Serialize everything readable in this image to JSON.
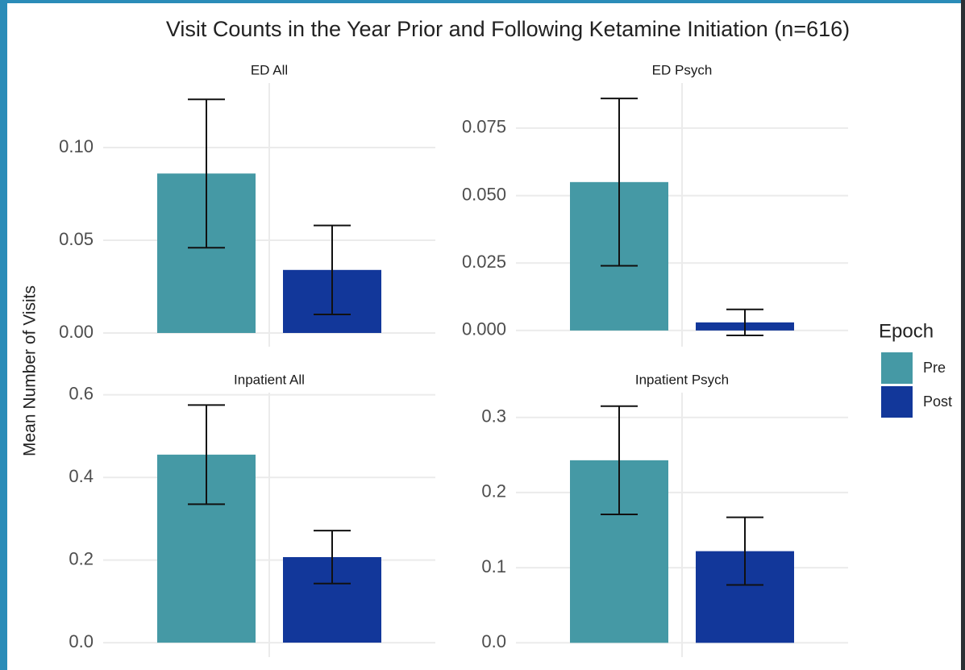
{
  "title": "Visit Counts in the Year Prior and Following Ketamine Initiation (n=616)",
  "y_label": "Mean Number of Visits",
  "legend_title": "Epoch",
  "chart_data": [
    {
      "type": "bar",
      "title": "ED All",
      "categories": [
        "Pre",
        "Post"
      ],
      "colors": [
        "#4599a5",
        "#12379a"
      ],
      "values": [
        0.086,
        0.034
      ],
      "errors": [
        0.04,
        0.024
      ],
      "ylim": [
        -0.0074,
        0.1348
      ],
      "yticks": [
        {
          "value": 0,
          "label": "0.00"
        },
        {
          "value": 0.05,
          "label": "0.05"
        },
        {
          "value": 0.1,
          "label": "0.10"
        }
      ],
      "grid": true
    },
    {
      "type": "bar",
      "title": "ED Psych",
      "categories": [
        "Pre",
        "Post"
      ],
      "colors": [
        "#4599a5",
        "#12379a"
      ],
      "values": [
        0.055,
        0.003
      ],
      "errors": [
        0.031,
        0.0048
      ],
      "ylim": [
        -0.006,
        0.0917
      ],
      "yticks": [
        {
          "value": 0,
          "label": "0.000"
        },
        {
          "value": 0.025,
          "label": "0.025"
        },
        {
          "value": 0.05,
          "label": "0.050"
        },
        {
          "value": 0.075,
          "label": "0.075"
        }
      ],
      "grid": true
    },
    {
      "type": "bar",
      "title": "Inpatient All",
      "categories": [
        "Pre",
        "Post"
      ],
      "colors": [
        "#4599a5",
        "#12379a"
      ],
      "values": [
        0.455,
        0.207
      ],
      "errors": [
        0.12,
        0.064
      ],
      "ylim": [
        -0.035,
        0.605
      ],
      "yticks": [
        {
          "value": 0,
          "label": "0.0"
        },
        {
          "value": 0.2,
          "label": "0.2"
        },
        {
          "value": 0.4,
          "label": "0.4"
        },
        {
          "value": 0.6,
          "label": "0.6"
        }
      ],
      "grid": true
    },
    {
      "type": "bar",
      "title": "Inpatient Psych",
      "categories": [
        "Pre",
        "Post"
      ],
      "colors": [
        "#4599a5",
        "#12379a"
      ],
      "values": [
        0.243,
        0.122
      ],
      "errors": [
        0.072,
        0.045
      ],
      "ylim": [
        -0.019,
        0.333
      ],
      "yticks": [
        {
          "value": 0,
          "label": "0.0"
        },
        {
          "value": 0.1,
          "label": "0.1"
        },
        {
          "value": 0.2,
          "label": "0.2"
        },
        {
          "value": 0.3,
          "label": "0.3"
        }
      ],
      "grid": true
    }
  ]
}
